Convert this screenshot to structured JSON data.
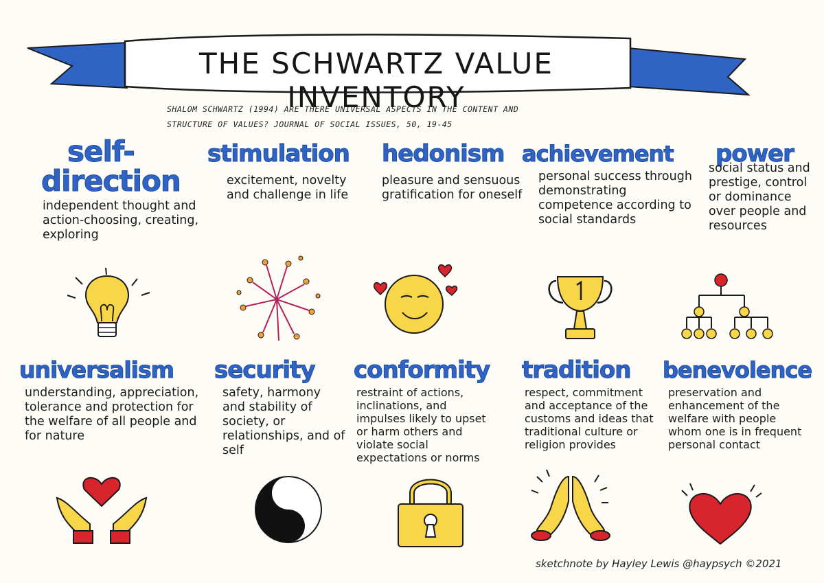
{
  "title": "THE SCHWARTZ VALUE INVENTORY",
  "citation": {
    "line1": "SHALOM SCHWARTZ (1994) ARE THERE UNIVERSAL ASPECTS IN THE CONTENT AND",
    "line2": "STRUCTURE OF VALUES? JOURNAL OF SOCIAL ISSUES, 50, 19-45"
  },
  "values_top": [
    {
      "name_line1": "self-",
      "name_line2": "direction",
      "desc": "independent thought and action-choosing, creating, exploring",
      "icon": "lightbulb-icon"
    },
    {
      "name_line1": "stimulation",
      "name_line2": "",
      "desc": "excitement, novelty and challenge in life",
      "icon": "fireworks-icon"
    },
    {
      "name_line1": "hedonism",
      "name_line2": "",
      "desc": "pleasure and sensuous gratification for oneself",
      "icon": "smiley-hearts-icon"
    },
    {
      "name_line1": "achievement",
      "name_line2": "",
      "desc": "personal success through demonstrating competence according to social standards",
      "icon": "trophy-icon"
    },
    {
      "name_line1": "power",
      "name_line2": "",
      "desc": "social status and prestige, control or dominance over people and resources",
      "icon": "hierarchy-icon"
    }
  ],
  "values_bottom": [
    {
      "name": "universalism",
      "desc": "understanding, appreciation, tolerance and protection for the welfare of all people and for nature",
      "icon": "hands-heart-icon"
    },
    {
      "name": "security",
      "desc": "safety, harmony and stability of society, or relationships, and of self",
      "icon": "yin-yang-icon"
    },
    {
      "name": "conformity",
      "desc": "restraint of actions, inclinations, and impulses likely to upset or harm others and violate social expectations or norms",
      "icon": "padlock-icon"
    },
    {
      "name": "tradition",
      "desc": "respect, commitment and acceptance of the customs and ideas that traditional culture or religion provides",
      "icon": "praying-hands-icon"
    },
    {
      "name": "benevolence",
      "desc": "preservation and enhancement of the welfare with people whom one is in frequent personal contact",
      "icon": "heart-icon"
    }
  ],
  "credit": "sketchnote by Hayley Lewis @haypsych ©2021",
  "colors": {
    "blue": "#2f64c5",
    "yellow": "#f7d64a",
    "red": "#d8242c",
    "paper": "#fdfcf7"
  }
}
